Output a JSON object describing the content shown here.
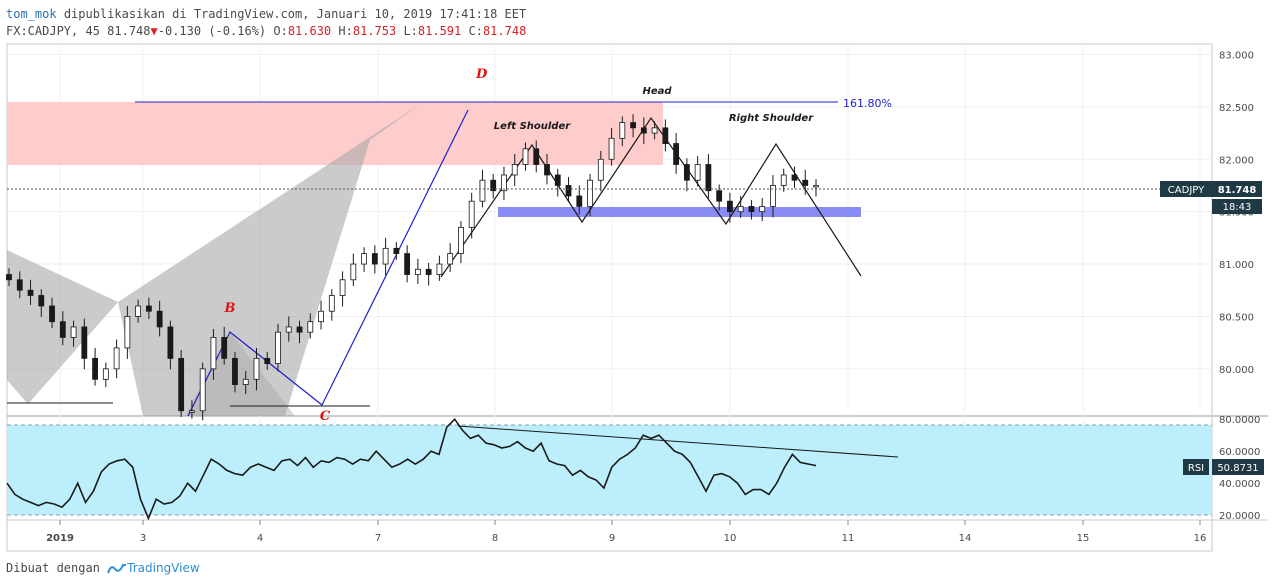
{
  "header": {
    "author": "tom_mok",
    "published": "dipublikasikan di TradingView.com, Januari 10, 2019 17:41:18 EET",
    "symbol": "FX:CADJPY, 45",
    "last": "81.748",
    "change": "-0.130 (-0.16%)",
    "o_label": "O:",
    "o": "81.630",
    "h_label": "H:",
    "h": "81.753",
    "l_label": "L:",
    "l": "81.591",
    "c_label": "C:",
    "c": "81.748"
  },
  "footer": {
    "made_with": "Dibuat dengan",
    "brand": "TradingView"
  },
  "colors": {
    "up": "#ffffff",
    "down": "#1a1a1a",
    "grid": "#e8e8e8",
    "rsi_band": "#bdeefb",
    "blue_line": "#1e1ed6",
    "pink_zone": "#ffcccc",
    "support": "#8a8cf5",
    "pattern_gray": "#a0a0a0"
  },
  "chart_data": [
    {
      "type": "candlestick",
      "symbol": "CADJPY",
      "timeframe": "45",
      "y_axis": {
        "range": [
          79.55,
          83.1
        ],
        "ticks": [
          "83.000",
          "82.500",
          "82.000",
          "81.500",
          "81.000",
          "80.500",
          "80.000"
        ]
      },
      "x_ticks": [
        "2019",
        "3",
        "4",
        "7",
        "8",
        "9",
        "10",
        "11",
        "14",
        "15",
        "16"
      ],
      "last_price_label": "CADJPY",
      "last_price": "81.748",
      "countdown": "18:43",
      "annotations": {
        "point_labels": [
          "D",
          "B",
          "C"
        ],
        "pattern_labels": [
          "Head",
          "Left Shoulder",
          "Right Shoulder"
        ],
        "fib_label": "161.80%"
      },
      "approx_closes": [
        80.85,
        80.75,
        80.7,
        80.6,
        80.45,
        80.3,
        80.4,
        80.1,
        79.9,
        80.0,
        80.2,
        80.5,
        80.6,
        80.55,
        80.4,
        80.1,
        79.6,
        79.6,
        80.0,
        80.3,
        80.1,
        79.85,
        79.9,
        80.1,
        80.05,
        80.35,
        80.4,
        80.35,
        80.45,
        80.55,
        80.7,
        80.85,
        81.0,
        81.1,
        81.0,
        81.15,
        81.1,
        80.9,
        80.95,
        80.9,
        81.0,
        81.1,
        81.35,
        81.6,
        81.8,
        81.7,
        81.85,
        81.95,
        82.1,
        81.95,
        81.85,
        81.75,
        81.65,
        81.55,
        81.8,
        82.0,
        82.2,
        82.35,
        82.3,
        82.25,
        82.3,
        82.15,
        81.95,
        81.8,
        81.95,
        81.7,
        81.6,
        81.5,
        81.55,
        81.5,
        81.55,
        81.75,
        81.85,
        81.8,
        81.75,
        81.75
      ]
    },
    {
      "type": "line",
      "name": "RSI",
      "last_value": "50.8731",
      "y_axis": {
        "range": [
          17,
          82
        ],
        "ticks": [
          "80.0000",
          "60.0000",
          "40.0000",
          "20.0000"
        ]
      },
      "band": [
        30,
        80
      ],
      "approx_values": [
        40,
        33,
        30,
        28,
        26,
        28,
        27,
        25,
        30,
        40,
        28,
        35,
        47,
        52,
        54,
        55,
        50,
        30,
        18,
        30,
        27,
        28,
        32,
        40,
        35,
        45,
        55,
        52,
        48,
        46,
        45,
        50,
        52,
        50,
        48,
        54,
        55,
        51,
        56,
        50,
        54,
        53,
        56,
        55,
        52,
        55,
        54,
        60,
        55,
        50,
        52,
        55,
        52,
        55,
        60,
        58,
        75,
        80,
        73,
        68,
        70,
        65,
        64,
        62,
        63,
        66,
        62,
        60,
        65,
        54,
        52,
        51,
        45,
        48,
        44,
        42,
        37,
        50,
        55,
        58,
        62,
        70,
        68,
        70,
        65,
        60,
        58,
        53,
        44,
        35,
        45,
        46,
        44,
        40,
        33,
        36,
        36,
        33,
        40,
        50,
        58,
        53,
        52,
        51
      ]
    }
  ]
}
